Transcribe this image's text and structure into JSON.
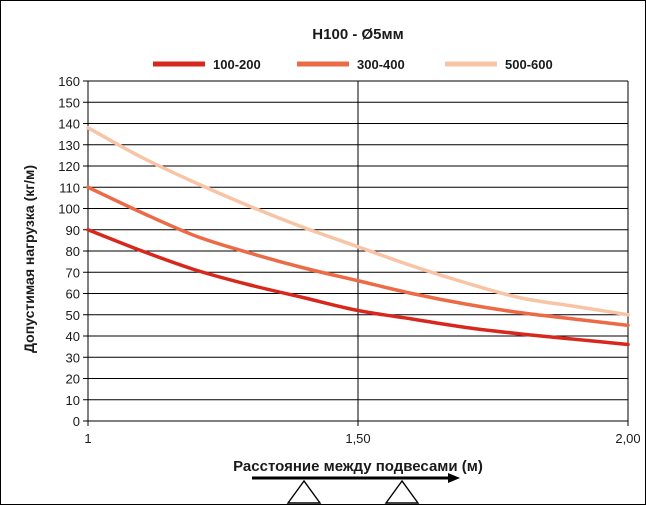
{
  "chart_data": {
    "type": "line",
    "title": "H100 - Ø5мм",
    "xlabel": "Расстояние между подвесами (м)",
    "ylabel": "Допустимая нагрузка (кг/м)",
    "xlim": [
      1,
      2
    ],
    "ylim": [
      0,
      160
    ],
    "x_ticks": [
      "1",
      "1,50",
      "2,00"
    ],
    "y_ticks": [
      "0",
      "10",
      "20",
      "30",
      "40",
      "50",
      "60",
      "70",
      "80",
      "90",
      "100",
      "110",
      "120",
      "130",
      "140",
      "150",
      "160"
    ],
    "grid": "horizontal lines every 10; vertical line at 1,50",
    "legend_position": "top",
    "x": [
      1.0,
      1.1,
      1.2,
      1.3,
      1.4,
      1.5,
      1.6,
      1.7,
      1.8,
      1.9,
      2.0
    ],
    "series": [
      {
        "name": "100-200",
        "color": "#d7281e",
        "values": [
          90,
          80,
          71,
          64,
          58,
          52,
          48,
          44,
          41,
          38.5,
          36
        ]
      },
      {
        "name": "300-400",
        "color": "#ec6a45",
        "values": [
          110,
          98,
          87,
          79,
          72,
          66,
          60,
          55,
          51,
          48,
          45
        ]
      },
      {
        "name": "500-600",
        "color": "#f8c4a6",
        "values": [
          138,
          124,
          112,
          101,
          91,
          82,
          73,
          65,
          58,
          54,
          50
        ]
      }
    ]
  }
}
